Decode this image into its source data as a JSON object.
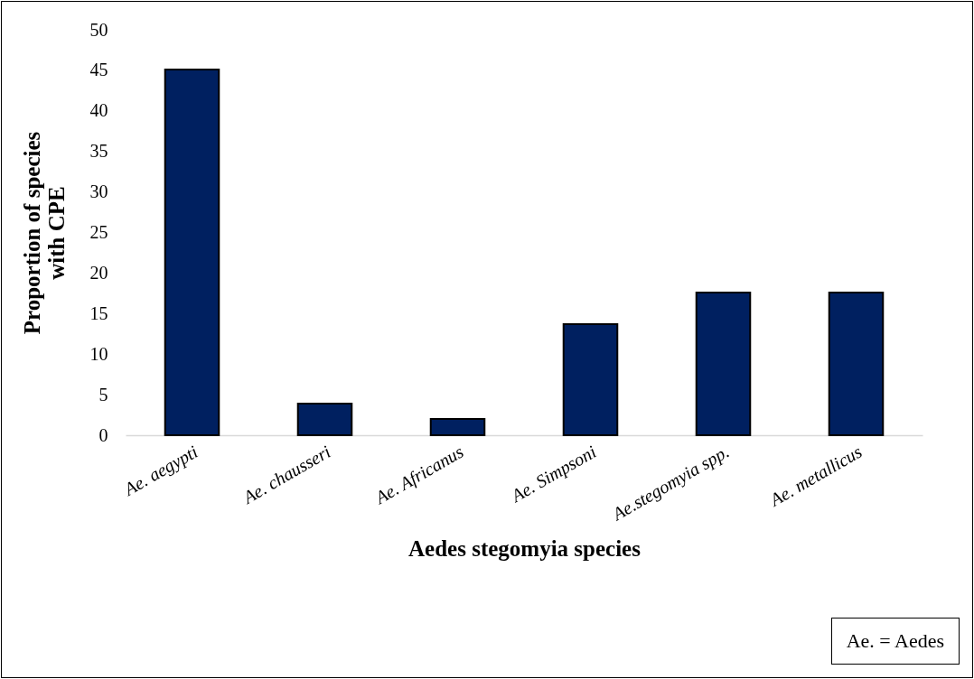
{
  "chart_data": {
    "type": "bar",
    "xlabel": "Aedes stegomyia species",
    "ylabel": "Proportion of species with  CPE",
    "categories": [
      "Ae. aegypti",
      "Ae. chausseri",
      "Ae. Africanus",
      "Ae. Simpsoni",
      "Ae.stegomyia spp.",
      "Ae. metallicus"
    ],
    "values": [
      45.1,
      3.9,
      2.0,
      13.7,
      17.6,
      17.6
    ],
    "color": "#002060",
    "ylim": [
      0,
      50
    ],
    "yticks": [
      0,
      5,
      10,
      15,
      20,
      25,
      30,
      35,
      40,
      45,
      50
    ],
    "grid": false,
    "annotations": [
      "Ae. = Aedes"
    ]
  }
}
